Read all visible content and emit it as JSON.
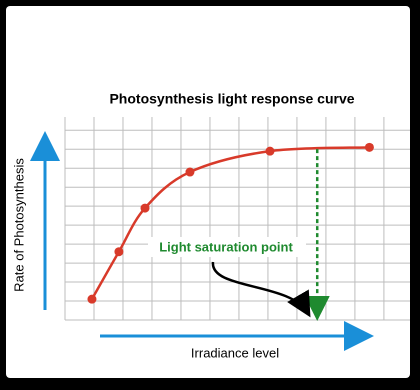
{
  "chart_data": {
    "type": "line",
    "title": "Photosynthesis light response curve",
    "x_label": "Irradiance level",
    "y_label": "Rate of Photosynthesis",
    "x": [
      0.93,
      1.86,
      2.76,
      4.31,
      7.07,
      10.5
    ],
    "series": [
      {
        "color": "#d83a2a",
        "values": [
          1.1,
          3.6,
          5.9,
          7.8,
          8.9,
          9.1
        ]
      }
    ],
    "xlim": [
      0,
      11.9
    ],
    "ylim": [
      0,
      10.7
    ],
    "grid": true,
    "annotation": {
      "text": "Light saturation point",
      "x": 8.7,
      "color": "#1f8a2f"
    }
  }
}
